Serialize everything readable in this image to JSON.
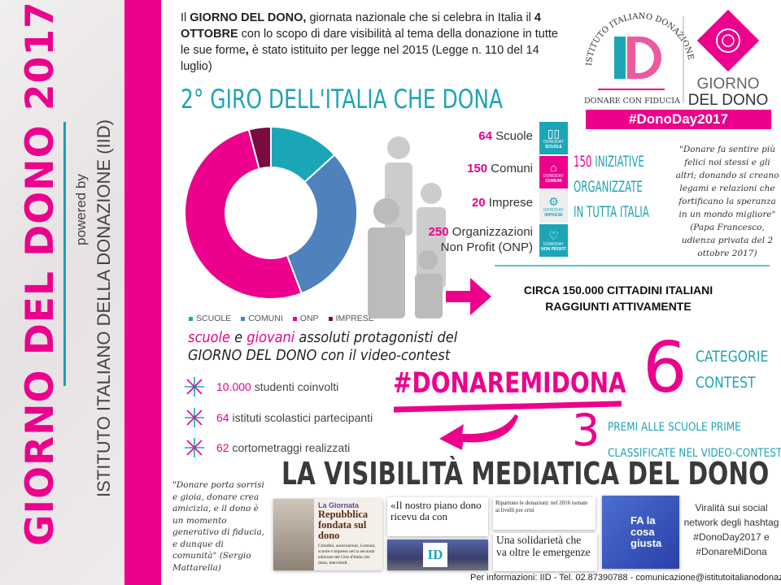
{
  "sidebar": {
    "title": "GIORNO DEL DONO 2017",
    "powered_by": "powered by",
    "institute": "ISTITUTO ITALIANO DELLA DONAZIONE (IID)"
  },
  "intro": {
    "p1": "Il ",
    "b1": "GIORNO DEL DONO,",
    "p2": " giornata nazionale che si celebra in Italia il ",
    "b2": "4 OTTOBRE",
    "p3": " con lo scopo di dare visibilità al tema della donazione in tutte le sue forme",
    "b3": ",",
    "p4": " è stato istituito per legge nel 2015 (Legge n. 110 del 14 luglio)"
  },
  "title": "2° GIRO DELL'ITALIA CHE DONA",
  "logo": {
    "arc_text": "ISTITUTO ITALIANO DONAZIONE",
    "monogram": "ID",
    "tagline": "DONARE CON FIDUCIA",
    "brand_line1": "GIORNO",
    "brand_line2": "DEL DONO",
    "hashtag": "#DonoDay2017"
  },
  "chart_data": {
    "type": "pie",
    "donut": true,
    "categories": [
      "SCUOLE",
      "COMUNI",
      "ONP",
      "IMPRESE"
    ],
    "values": [
      64,
      150,
      250,
      20
    ],
    "colors": [
      "#1ba6b8",
      "#4f81bd",
      "#ec008c",
      "#7b0a3e"
    ],
    "legend": "bottom"
  },
  "stats": [
    {
      "num": "64",
      "label": " Scuole",
      "tile": "SCUOLE",
      "icon": "book-icon",
      "color": "#1ba6b8"
    },
    {
      "num": "150",
      "label": " Comuni",
      "tile": "COMUNI",
      "icon": "building-icon",
      "color": "#ec008c"
    },
    {
      "num": "20",
      "label": " Imprese",
      "tile": "IMPRESE",
      "icon": "gears-icon",
      "color": "#eeeeee"
    },
    {
      "num": "250",
      "label": " Organizzazioni",
      "label2": "Non Profit (ONP)",
      "tile": "NON PROFIT",
      "icon": "heart-icon",
      "color": "#1ba6b8"
    }
  ],
  "tile_prefix": "DONODAY",
  "initiatives": {
    "num": "150",
    "l1": " INIZIATIVE",
    "l2": "ORGANIZZATE",
    "l3": "IN TUTTA ITALIA"
  },
  "papa_quote": "\"Donare fa sentire più felici noi stessi e gli altri; donando si creano legami e relazioni che fortificano la speranza in un mondo migliore\" (Papa Francesco, udienza privata del 2 ottobre 2017)",
  "circa": {
    "l1": "CIRCA 150.000 CITTADINI ITALIANI",
    "l2": "RAGGIUNTI ATTIVAMENTE"
  },
  "schools": {
    "w1": "scuole",
    "w2": " e ",
    "w3": "giovani",
    "w4": " assoluti protagonisti del",
    "l2": "GIORNO DEL DONO con il video-contest"
  },
  "bullets": [
    {
      "num": "10.000",
      "text": " studenti coinvolti"
    },
    {
      "num": "64",
      "text": " istituti scolastici partecipanti"
    },
    {
      "num": "62",
      "text": " cortometraggi realizzati"
    }
  ],
  "hashtag_contest": "#DONAREMIDONA",
  "categories": {
    "num": "6",
    "l1": "CATEGORIE",
    "l2": "CONTEST"
  },
  "prizes": {
    "num": "3",
    "l1": "PREMI ALLE SCUOLE PRIME",
    "l2": "CLASSIFICATE NEL VIDEO-CONTEST"
  },
  "visibility_title": "LA VISIBILITÀ MEDIATICA DEL DONO",
  "mattarella_quote": "\"Donare porta sorrisi e gioia, donare crea amicizia, e il dono è un momento generativo di fiducia, e dunque di comunità\" (Sergio Mattarella)",
  "press": {
    "c1_kicker": "La Giornata",
    "c1_head": "Repubblica fondata sul dono",
    "c1_body": "Cittadini, associazioni, Comuni, scuole e imprese nel la seconda edizione del Giro d'Italia che dona, mercoledì.",
    "c2_head": "«Il nostro piano dono ricevu da con",
    "c3_head": "Ripartono le donazioni: nel 2016 tornate ai livelli pre crisi",
    "c4_head": "Una solidarietà che va oltre le emergenze",
    "c5_head": "FA la cosa giusta"
  },
  "viral": "Viralità sui social network degli hashtag #DonoDay2017 e #DonareMiDona",
  "footer": "Per informazioni: IID - Tel. 02.87390788 - comunicazione@istitutoitalianodonazione.it"
}
